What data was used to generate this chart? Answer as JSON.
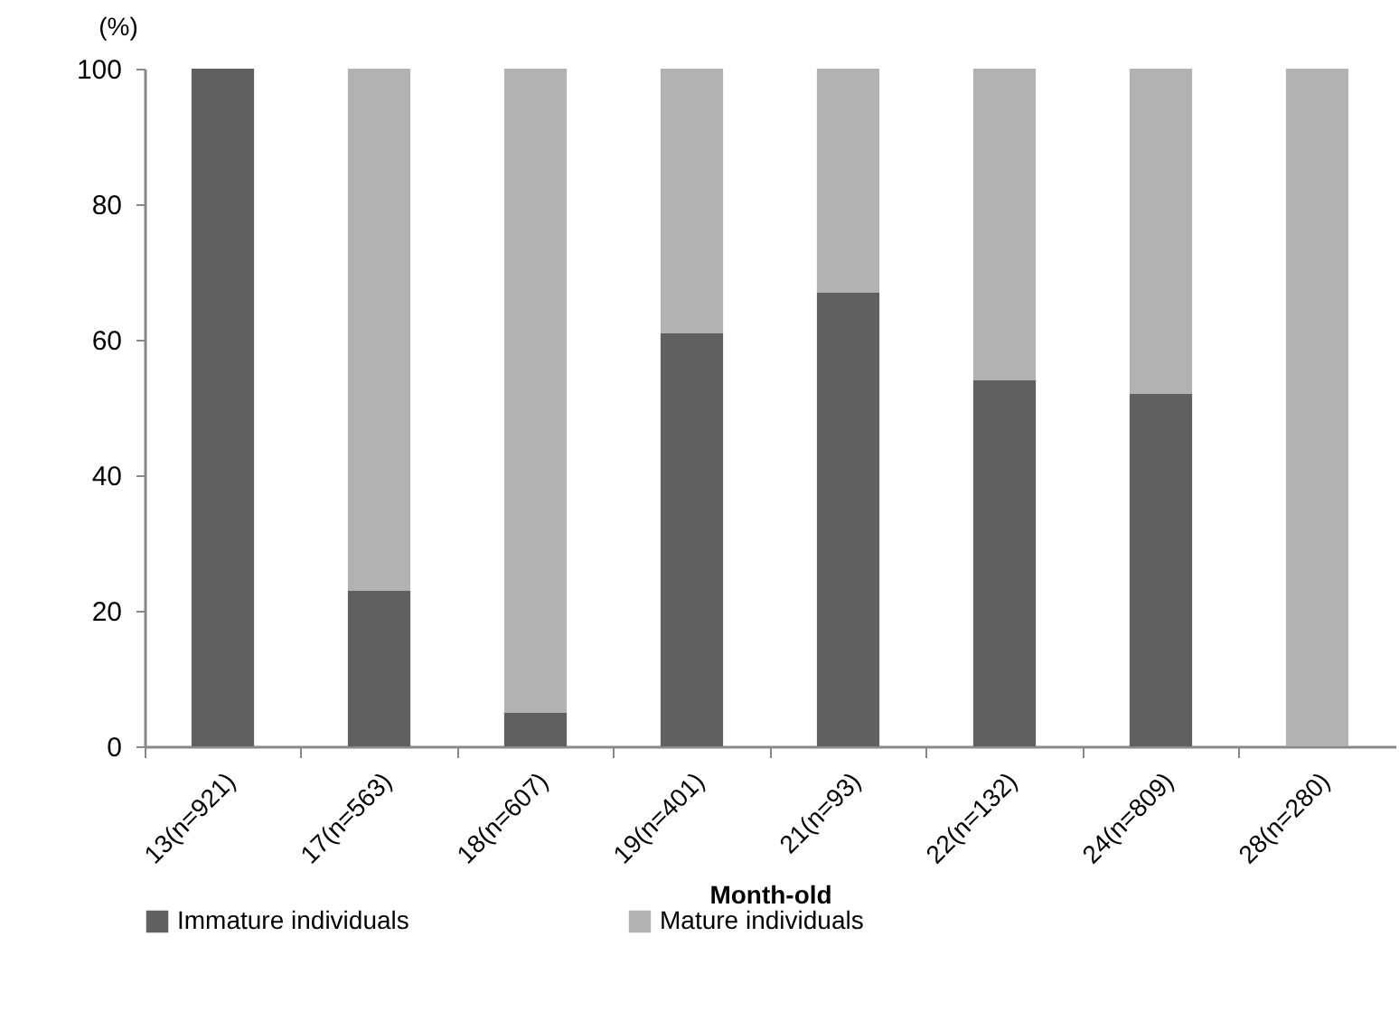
{
  "chart_data": {
    "type": "bar",
    "stacked": true,
    "xlabel": "Month-old",
    "ylabel": "(%)",
    "categories": [
      "13(n=921)",
      "17(n=563)",
      "18(n=607)",
      "19(n=401)",
      "21(n=93)",
      "22(n=132)",
      "24(n=809)",
      "28(n=280)"
    ],
    "series": [
      {
        "name": "Immature individuals",
        "color": "#606060",
        "values": [
          100,
          23,
          5,
          61,
          67,
          54,
          52,
          0
        ]
      },
      {
        "name": "Mature individuals",
        "color": "#b2b2b2",
        "values": [
          0,
          77,
          95,
          39,
          33,
          46,
          48,
          100
        ]
      }
    ],
    "ylim": [
      0,
      100
    ],
    "yticks": [
      0,
      20,
      40,
      60,
      80,
      100
    ],
    "grid": false,
    "legend": "bottom"
  }
}
